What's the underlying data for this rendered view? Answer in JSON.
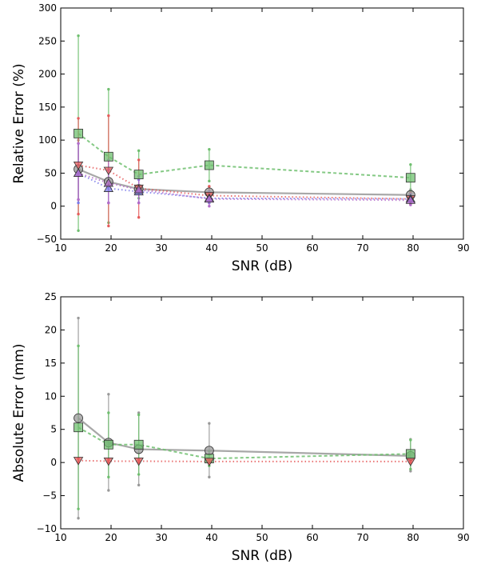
{
  "chart_data": [
    {
      "type": "line",
      "xlabel": "SNR (dB)",
      "ylabel": "Relative Error (%)",
      "xlim": [
        10,
        90
      ],
      "ylim": [
        -50,
        300
      ],
      "xticks": [
        10,
        20,
        30,
        40,
        50,
        60,
        70,
        80,
        90
      ],
      "yticks": [
        -50,
        0,
        50,
        100,
        150,
        200,
        250,
        300
      ],
      "xtick_labels": [
        "10",
        "20",
        "30",
        "40",
        "50",
        "60",
        "70",
        "80",
        "90"
      ],
      "ytick_labels": [
        "−50",
        "0",
        "50",
        "100",
        "150",
        "200",
        "250",
        "300"
      ],
      "grid": false,
      "x": [
        13.5,
        19.5,
        25.5,
        39.5,
        79.5
      ],
      "series": [
        {
          "color": "#999999",
          "marker": "circle",
          "line": "solid",
          "values": [
            56,
            37,
            26,
            21,
            17
          ],
          "err_low": [
            10,
            5,
            5,
            5,
            5
          ],
          "err_high": [
            100,
            70,
            30,
            30,
            25
          ]
        },
        {
          "color": "#6fbf6f",
          "marker": "square",
          "line": "dashed",
          "values": [
            110,
            75,
            48,
            62,
            43
          ],
          "err_low": [
            -37,
            -25,
            12,
            38,
            22
          ],
          "err_high": [
            258,
            177,
            84,
            86,
            63
          ]
        },
        {
          "color": "#e65c5c",
          "marker": "triangle-down",
          "line": "dotted",
          "values": [
            62,
            54,
            27,
            16,
            11
          ],
          "err_low": [
            -12,
            -30,
            -17,
            5,
            3
          ],
          "err_high": [
            133,
            137,
            70,
            30,
            20
          ]
        },
        {
          "color": "#7a7aea",
          "marker": "triangle-up",
          "line": "dotted",
          "values": [
            50,
            27,
            22,
            12,
            11
          ],
          "err_low": [
            5,
            5,
            5,
            5,
            5
          ],
          "err_high": [
            95,
            55,
            40,
            22,
            18
          ]
        },
        {
          "color": "#b36bc9",
          "marker": "triangle-up",
          "line": "dotted",
          "values": [
            50,
            35,
            25,
            11,
            9
          ],
          "err_low": [
            10,
            5,
            5,
            0,
            2
          ],
          "err_high": [
            95,
            70,
            45,
            20,
            15
          ]
        }
      ]
    },
    {
      "type": "line",
      "xlabel": "SNR (dB)",
      "ylabel": "Absolute Error  (mm)",
      "xlim": [
        10,
        90
      ],
      "ylim": [
        -10,
        25
      ],
      "xticks": [
        10,
        20,
        30,
        40,
        50,
        60,
        70,
        80,
        90
      ],
      "yticks": [
        -10,
        -5,
        0,
        5,
        10,
        15,
        20,
        25
      ],
      "xtick_labels": [
        "10",
        "20",
        "30",
        "40",
        "50",
        "60",
        "70",
        "80",
        "90"
      ],
      "ytick_labels": [
        "−10",
        "−5",
        "0",
        "5",
        "10",
        "15",
        "20",
        "25"
      ],
      "grid": false,
      "x": [
        13.5,
        19.5,
        25.5,
        39.5,
        79.5
      ],
      "series": [
        {
          "color": "#999999",
          "marker": "circle",
          "line": "solid",
          "values": [
            6.7,
            3.0,
            2.0,
            1.8,
            1.0
          ],
          "err_low": [
            -8.4,
            -4.2,
            -3.4,
            -2.2,
            -1.3
          ],
          "err_high": [
            21.8,
            10.3,
            7.5,
            5.9,
            3.5
          ]
        },
        {
          "color": "#6fbf6f",
          "marker": "square",
          "line": "dashed",
          "values": [
            5.3,
            2.7,
            2.7,
            0.6,
            1.3
          ],
          "err_low": [
            -7.0,
            -2.2,
            -1.8,
            -0.5,
            -1.0
          ],
          "err_high": [
            17.6,
            7.5,
            7.2,
            1.7,
            3.4
          ]
        },
        {
          "color": "#e65c5c",
          "marker": "triangle-down",
          "line": "dotted",
          "values": [
            0.3,
            0.2,
            0.2,
            0.15,
            0.15
          ],
          "err_low": [
            0.0,
            0.0,
            0.0,
            0.0,
            0.0
          ],
          "err_high": [
            0.6,
            0.4,
            0.4,
            0.3,
            0.3
          ]
        }
      ]
    }
  ]
}
